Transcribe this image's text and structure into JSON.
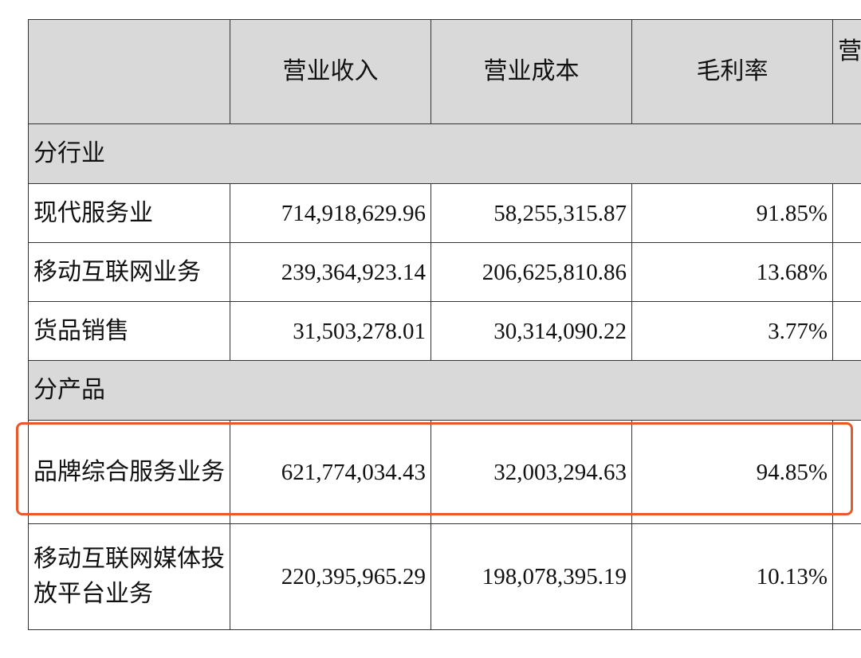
{
  "table": {
    "header": [
      "营业收入",
      "营业成本",
      "毛利率",
      "营"
    ],
    "sections": [
      {
        "title": "分行业",
        "rows": [
          {
            "label": "现代服务业",
            "values": [
              "714,918,629.96",
              "58,255,315.87",
              "91.85%"
            ]
          },
          {
            "label": "移动互联网业务",
            "values": [
              "239,364,923.14",
              "206,625,810.86",
              "13.68%"
            ]
          },
          {
            "label": "货品销售",
            "values": [
              "31,503,278.01",
              "30,314,090.22",
              "3.77%"
            ]
          }
        ]
      },
      {
        "title": "分产品",
        "rows": [
          {
            "label": "品牌综合服务业务",
            "values": [
              "621,774,034.43",
              "32,003,294.63",
              "94.85%"
            ]
          },
          {
            "label": "移动互联网媒体投放平台业务",
            "values": [
              "220,395,965.29",
              "198,078,395.19",
              "10.13%"
            ]
          }
        ]
      }
    ]
  }
}
